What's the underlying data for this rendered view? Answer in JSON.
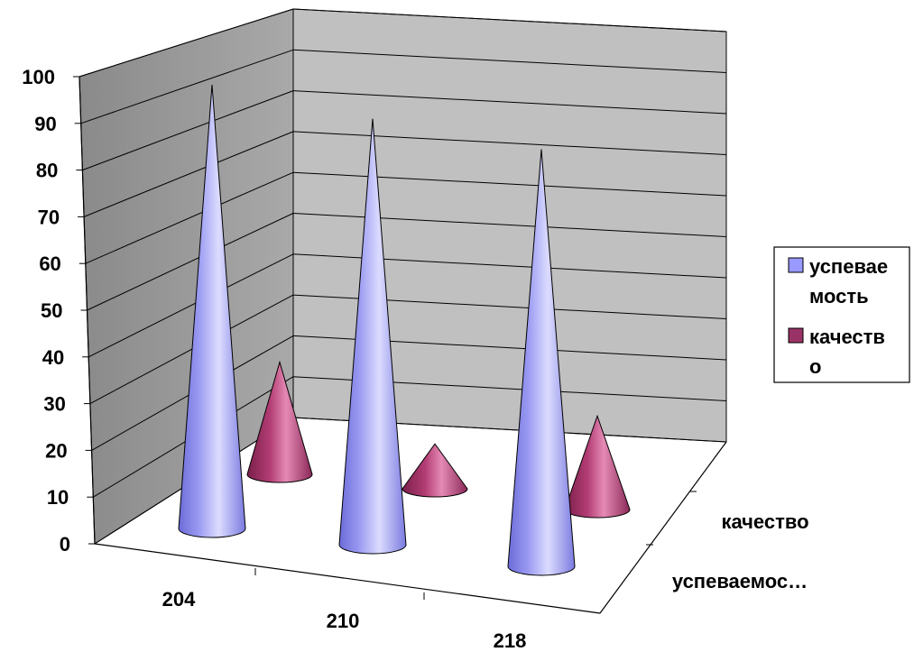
{
  "chart_data": {
    "type": "bar",
    "style": "3d-cone",
    "title": "",
    "xlabel": "",
    "ylabel": "",
    "categories": [
      "204",
      "210",
      "218"
    ],
    "series_axis_labels": [
      "качество",
      "успеваемос…"
    ],
    "series": [
      {
        "name": "успеваемость",
        "legend_lines": [
          "успевае",
          "мость"
        ],
        "color": "#9999ff",
        "values": [
          100,
          96,
          94
        ]
      },
      {
        "name": "качество",
        "legend_lines": [
          "качеств",
          "о"
        ],
        "color": "#993366",
        "values": [
          30,
          12,
          25
        ]
      }
    ],
    "ylim": [
      0,
      100
    ],
    "yticks": [
      0,
      10,
      20,
      30,
      40,
      50,
      60,
      70,
      80,
      90,
      100
    ],
    "grid": true,
    "legend_position": "right"
  }
}
